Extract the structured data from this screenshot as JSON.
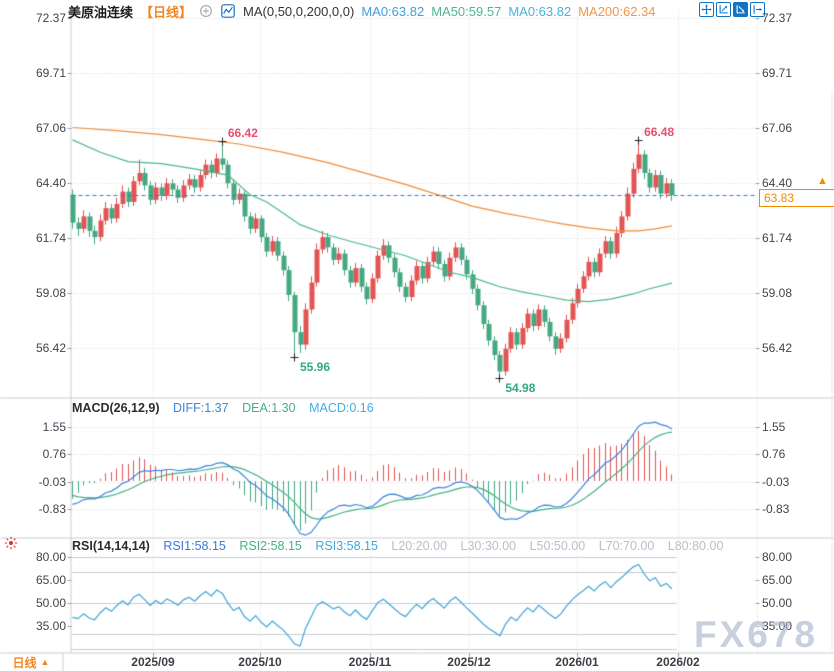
{
  "header": {
    "symbol": "美原油连续",
    "period_tag": "【日线】",
    "ma_settings": "MA(0,50,0,200,0,0)",
    "ma_values": [
      {
        "label": "MA0:63.82",
        "color_key": "ma0_text"
      },
      {
        "label": "MA50:59.57",
        "color_key": "ma50_text"
      },
      {
        "label": "MA0:63.82",
        "color_key": "ma0b_text"
      },
      {
        "label": "MA200:62.34",
        "color_key": "ma200_text"
      }
    ],
    "toolbar_icons": [
      "move-chart-icon",
      "scale-x-axis-icon",
      "scale-y-axis-icon",
      "shift-chart-right-icon"
    ]
  },
  "macd_panel": {
    "title": "MACD(26,12,9)",
    "values": [
      {
        "label": "DIFF:1.37",
        "color_key": "diff_text"
      },
      {
        "label": "DEA:1.30",
        "color_key": "dea_text"
      },
      {
        "label": "MACD:0.16",
        "color_key": "macd_text"
      }
    ]
  },
  "rsi_panel": {
    "title": "RSI(14,14,14)",
    "values": [
      {
        "label": "RSI1:58.15",
        "color_key": "rsi1_text"
      },
      {
        "label": "RSI2:58.15",
        "color_key": "rsi2_text"
      },
      {
        "label": "RSI3:58.15",
        "color_key": "rsi3_text"
      },
      {
        "label": "L20:20.00",
        "color_key": "l_text"
      },
      {
        "label": "L30:30.00",
        "color_key": "l_text"
      },
      {
        "label": "L50:50.00",
        "color_key": "l_text"
      },
      {
        "label": "L70:70.00",
        "color_key": "l_text"
      },
      {
        "label": "L80:80.00",
        "color_key": "l_text"
      }
    ]
  },
  "price_marker": {
    "value": "63.83"
  },
  "watermark": "FX678",
  "time_axis": {
    "period_label": "日线",
    "dates": [
      "2025/09",
      "2025/10",
      "2025/11",
      "2025/12",
      "2026/01",
      "2026/02"
    ]
  },
  "colors": {
    "up": "#e35454",
    "down": "#45a881",
    "ma50_line": "#4ab98d",
    "ma200_line": "#f08c3c",
    "diff_line": "#3c86dd",
    "dea_line": "#45b183",
    "rsi_line": "#41a5d6",
    "dashed_line": "#2a7de1",
    "last_price": "#f08c00",
    "accent_blue": "#1273c4",
    "period_orange": "#f5861f",
    "high_label": "#e8506e",
    "low_label": "#2faa7d",
    "grid": "#d7dadf",
    "solid_grid": "#c9cdd4",
    "tick": "#9aa0a8",
    "cross": "#222222",
    "ma0_text": "#3f9fdc",
    "ma50_text": "#4ab98d",
    "ma0b_text": "#49b3d9",
    "ma200_text": "#f29544",
    "diff_text": "#3c86dd",
    "dea_text": "#45b183",
    "macd_text": "#43aede",
    "rsi1_text": "#3c78d8",
    "rsi2_text": "#45b183",
    "rsi3_text": "#3fa8d8",
    "l_text": "#b9bec8"
  },
  "chart_data": {
    "type": "candlestick",
    "title": "美原油连续 日线 (US Crude Oil Continuous, Daily)",
    "interval": "日线",
    "legend": [
      "MA50",
      "MA200",
      "DIFF",
      "DEA",
      "MACD",
      "RSI"
    ],
    "axes": {
      "price_ticks": [
        "72.37",
        "69.71",
        "67.06",
        "64.40",
        "61.74",
        "59.08",
        "56.42"
      ],
      "macd_ticks": [
        "1.55",
        "0.76",
        "-0.03",
        "-0.83"
      ],
      "rsi_ticks": [
        "80.00",
        "65.00",
        "50.00",
        "35.00"
      ],
      "rsi_ref_levels": [
        80,
        70,
        50,
        30,
        20
      ],
      "dates": [
        "2025/09",
        "2025/10",
        "2025/11",
        "2025/12",
        "2026/01",
        "2026/02"
      ]
    },
    "last_price": 63.83,
    "candles": [
      [
        63.85,
        64.1,
        62.2,
        62.5
      ],
      [
        62.5,
        62.75,
        61.85,
        62.2
      ],
      [
        62.2,
        63.1,
        62.0,
        62.8
      ],
      [
        62.8,
        63.0,
        61.8,
        62.1
      ],
      [
        62.1,
        62.35,
        61.45,
        61.8
      ],
      [
        61.8,
        62.9,
        61.6,
        62.6
      ],
      [
        62.6,
        63.5,
        62.4,
        63.2
      ],
      [
        63.2,
        63.4,
        62.45,
        62.7
      ],
      [
        62.7,
        63.7,
        62.5,
        63.4
      ],
      [
        63.4,
        64.3,
        63.2,
        64.0
      ],
      [
        64.0,
        64.2,
        63.25,
        63.5
      ],
      [
        63.5,
        64.75,
        63.3,
        64.5
      ],
      [
        64.5,
        65.55,
        64.3,
        64.9
      ],
      [
        64.9,
        65.15,
        64.05,
        64.3
      ],
      [
        64.3,
        64.5,
        63.35,
        63.6
      ],
      [
        63.6,
        64.45,
        63.4,
        64.2
      ],
      [
        64.2,
        64.4,
        63.55,
        63.8
      ],
      [
        63.8,
        64.65,
        63.6,
        64.4
      ],
      [
        64.4,
        64.6,
        63.85,
        64.1
      ],
      [
        64.1,
        64.3,
        63.45,
        63.7
      ],
      [
        63.7,
        64.55,
        63.5,
        64.3
      ],
      [
        64.3,
        64.85,
        64.1,
        64.6
      ],
      [
        64.6,
        64.8,
        63.95,
        64.2
      ],
      [
        64.2,
        65.05,
        64.0,
        64.8
      ],
      [
        64.8,
        65.55,
        64.6,
        65.3
      ],
      [
        65.3,
        65.5,
        64.65,
        64.9
      ],
      [
        64.9,
        65.85,
        64.7,
        65.6
      ],
      [
        65.6,
        66.42,
        65.05,
        65.3
      ],
      [
        65.3,
        65.5,
        64.15,
        64.4
      ],
      [
        64.4,
        64.6,
        63.35,
        63.6
      ],
      [
        63.6,
        64.15,
        63.4,
        63.9
      ],
      [
        63.9,
        64.05,
        62.55,
        62.8
      ],
      [
        62.8,
        63.0,
        61.95,
        62.2
      ],
      [
        62.2,
        62.95,
        62.0,
        62.7
      ],
      [
        62.7,
        62.85,
        61.55,
        61.8
      ],
      [
        61.8,
        62.0,
        60.85,
        61.1
      ],
      [
        61.1,
        61.85,
        60.9,
        61.6
      ],
      [
        61.6,
        61.8,
        60.65,
        60.9
      ],
      [
        60.9,
        61.1,
        59.95,
        60.2
      ],
      [
        60.2,
        60.4,
        58.7,
        59.0
      ],
      [
        59.0,
        59.15,
        55.96,
        57.2
      ],
      [
        57.2,
        57.5,
        56.2,
        56.6
      ],
      [
        56.6,
        58.6,
        56.35,
        58.3
      ],
      [
        58.3,
        59.9,
        58.1,
        59.6
      ],
      [
        59.6,
        61.5,
        59.4,
        61.2
      ],
      [
        61.2,
        62.1,
        61.0,
        61.8
      ],
      [
        61.8,
        62.0,
        61.05,
        61.3
      ],
      [
        61.3,
        61.5,
        60.45,
        60.7
      ],
      [
        60.7,
        61.3,
        60.5,
        61.0
      ],
      [
        61.0,
        61.2,
        59.95,
        60.2
      ],
      [
        60.2,
        60.4,
        59.35,
        59.6
      ],
      [
        59.6,
        60.55,
        59.4,
        60.3
      ],
      [
        60.3,
        60.5,
        59.15,
        59.4
      ],
      [
        59.4,
        59.6,
        58.55,
        58.8
      ],
      [
        58.8,
        60.05,
        58.6,
        59.8
      ],
      [
        59.8,
        61.15,
        59.6,
        60.9
      ],
      [
        60.9,
        61.7,
        60.7,
        61.4
      ],
      [
        61.4,
        61.6,
        60.55,
        60.8
      ],
      [
        60.8,
        61.0,
        59.85,
        60.1
      ],
      [
        60.1,
        60.3,
        59.15,
        59.4
      ],
      [
        59.4,
        59.6,
        58.65,
        58.9
      ],
      [
        58.9,
        59.95,
        58.7,
        59.7
      ],
      [
        59.7,
        60.65,
        59.5,
        60.4
      ],
      [
        60.4,
        60.6,
        59.55,
        59.8
      ],
      [
        59.8,
        60.85,
        59.6,
        60.6
      ],
      [
        60.6,
        61.35,
        60.4,
        61.1
      ],
      [
        61.1,
        61.3,
        60.25,
        60.5
      ],
      [
        60.5,
        60.7,
        59.65,
        59.9
      ],
      [
        59.9,
        61.05,
        59.7,
        60.8
      ],
      [
        60.8,
        61.55,
        60.6,
        61.3
      ],
      [
        61.3,
        61.5,
        60.45,
        60.7
      ],
      [
        60.7,
        60.9,
        59.75,
        60.0
      ],
      [
        60.0,
        60.2,
        59.05,
        59.3
      ],
      [
        59.3,
        59.5,
        58.25,
        58.5
      ],
      [
        58.5,
        58.7,
        57.35,
        57.6
      ],
      [
        57.6,
        57.8,
        56.55,
        56.8
      ],
      [
        56.8,
        57.0,
        55.85,
        56.1
      ],
      [
        56.1,
        56.3,
        54.98,
        55.3
      ],
      [
        55.3,
        56.65,
        55.1,
        56.4
      ],
      [
        56.4,
        57.45,
        56.2,
        57.2
      ],
      [
        57.2,
        57.4,
        56.35,
        56.6
      ],
      [
        56.6,
        57.65,
        56.4,
        57.4
      ],
      [
        57.4,
        58.35,
        57.2,
        58.1
      ],
      [
        58.1,
        58.3,
        57.25,
        57.5
      ],
      [
        57.5,
        58.55,
        57.3,
        58.3
      ],
      [
        58.3,
        58.5,
        57.45,
        57.7
      ],
      [
        57.7,
        57.9,
        56.75,
        57.0
      ],
      [
        57.0,
        57.2,
        56.1,
        56.4
      ],
      [
        56.4,
        57.15,
        56.2,
        56.9
      ],
      [
        56.9,
        58.05,
        56.7,
        57.8
      ],
      [
        57.8,
        58.85,
        57.6,
        58.6
      ],
      [
        58.6,
        59.55,
        58.4,
        59.3
      ],
      [
        59.3,
        60.15,
        59.1,
        59.9
      ],
      [
        59.9,
        60.85,
        59.7,
        60.6
      ],
      [
        60.6,
        60.8,
        59.85,
        60.1
      ],
      [
        60.1,
        61.25,
        59.9,
        61.0
      ],
      [
        61.0,
        61.85,
        60.8,
        61.6
      ],
      [
        61.6,
        61.8,
        60.75,
        61.0
      ],
      [
        61.0,
        62.3,
        60.8,
        62.0
      ],
      [
        62.0,
        63.05,
        61.8,
        62.8
      ],
      [
        62.8,
        64.2,
        62.6,
        63.9
      ],
      [
        63.9,
        65.4,
        63.7,
        65.1
      ],
      [
        65.1,
        66.48,
        64.9,
        65.8
      ],
      [
        65.8,
        66.0,
        64.6,
        64.9
      ],
      [
        64.9,
        65.1,
        63.95,
        64.2
      ],
      [
        64.2,
        65.05,
        64.0,
        64.8
      ],
      [
        64.8,
        65.0,
        63.65,
        63.9
      ],
      [
        63.9,
        64.65,
        63.7,
        64.4
      ],
      [
        64.4,
        64.6,
        63.55,
        63.83
      ]
    ],
    "ma50_points": [
      [
        0,
        66.5
      ],
      [
        5,
        65.9
      ],
      [
        10,
        65.45
      ],
      [
        16,
        65.35
      ],
      [
        22,
        65.1
      ],
      [
        28,
        64.8
      ],
      [
        32,
        63.85
      ],
      [
        35,
        63.5
      ],
      [
        38,
        62.95
      ],
      [
        41,
        62.4
      ],
      [
        46,
        61.9
      ],
      [
        50,
        61.6
      ],
      [
        55,
        61.25
      ],
      [
        60,
        60.9
      ],
      [
        64,
        60.5
      ],
      [
        68,
        60.1
      ],
      [
        72,
        59.85
      ],
      [
        77,
        59.4
      ],
      [
        81,
        59.15
      ],
      [
        85,
        58.95
      ],
      [
        89,
        58.75
      ],
      [
        93,
        58.68
      ],
      [
        97,
        58.8
      ],
      [
        101,
        59.05
      ],
      [
        104,
        59.3
      ],
      [
        108,
        59.57
      ]
    ],
    "ma200_points": [
      [
        0,
        67.1
      ],
      [
        8,
        66.95
      ],
      [
        16,
        66.75
      ],
      [
        24,
        66.5
      ],
      [
        30,
        66.3
      ],
      [
        38,
        65.9
      ],
      [
        46,
        65.4
      ],
      [
        54,
        64.8
      ],
      [
        60,
        64.35
      ],
      [
        66,
        63.83
      ],
      [
        72,
        63.3
      ],
      [
        78,
        62.95
      ],
      [
        83,
        62.7
      ],
      [
        88,
        62.45
      ],
      [
        93,
        62.25
      ],
      [
        98,
        62.1
      ],
      [
        102,
        62.1
      ],
      [
        105,
        62.2
      ],
      [
        108,
        62.34
      ]
    ],
    "extremes": [
      {
        "index": 27,
        "price": 66.42,
        "label": "66.42",
        "type": "high"
      },
      {
        "index": 102,
        "price": 66.48,
        "label": "66.48",
        "type": "high"
      },
      {
        "index": 40,
        "price": 55.96,
        "label": "55.96",
        "type": "low"
      },
      {
        "index": 77,
        "price": 54.98,
        "label": "54.98",
        "type": "low"
      }
    ],
    "indicators": {
      "macd": {
        "params": [
          26,
          12,
          9
        ],
        "diff": 1.37,
        "dea": 1.3,
        "macd": 0.16
      },
      "rsi": {
        "params": [
          14,
          14,
          14
        ],
        "rsi1": 58.15,
        "rsi2": 58.15,
        "rsi3": 58.15,
        "levels": {
          "L20": 20.0,
          "L30": 30.0,
          "L50": 50.0,
          "L70": 70.0,
          "L80": 80.0
        }
      }
    }
  }
}
